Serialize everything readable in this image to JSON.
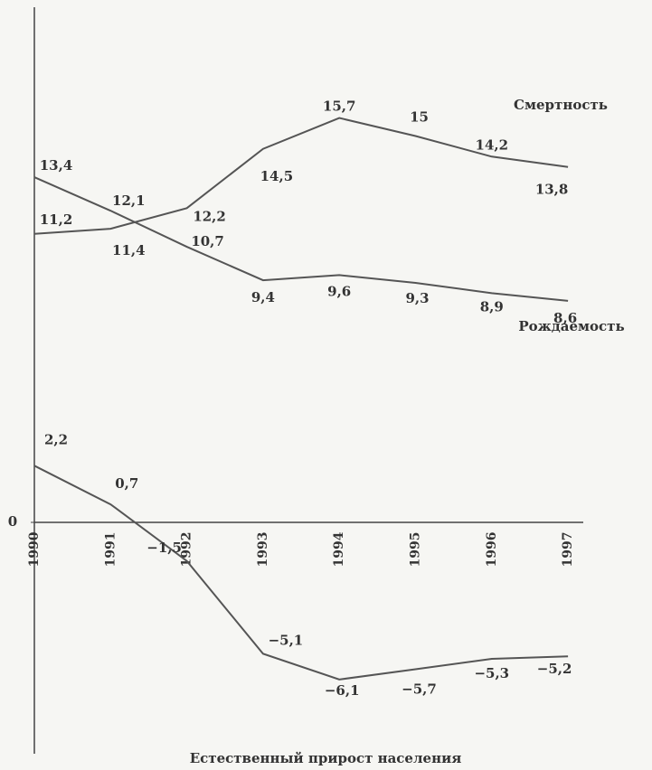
{
  "chart_data": {
    "type": "line",
    "categories": [
      "1990",
      "1991",
      "1992",
      "1993",
      "1994",
      "1995",
      "1996",
      "1997"
    ],
    "series": [
      {
        "name": "Смертность",
        "color": "#555555",
        "values": [
          11.2,
          11.4,
          12.2,
          14.5,
          15.7,
          15,
          14.2,
          13.8
        ],
        "value_labels": [
          "11,2",
          "11,4",
          "12,2",
          "14,5",
          "15,7",
          "15",
          "14,2",
          "13,8"
        ]
      },
      {
        "name": "Рождаемость",
        "color": "#555555",
        "values": [
          13.4,
          12.1,
          10.7,
          9.4,
          9.6,
          9.3,
          8.9,
          8.6
        ],
        "value_labels": [
          "13,4",
          "12,1",
          "10,7",
          "9,4",
          "9,6",
          "9,3",
          "8,9",
          "8,6"
        ]
      },
      {
        "name": "Естественный прирост населения",
        "color": "#555555",
        "values": [
          2.2,
          0.7,
          -1.5,
          -5.1,
          -6.1,
          -5.7,
          -5.3,
          -5.2
        ],
        "value_labels": [
          "2,2",
          "0,7",
          "−1,5",
          "−5,1",
          "−6,1",
          "−5,7",
          "−5,3",
          "−5,2"
        ]
      }
    ],
    "ylim": [
      -9,
      20
    ],
    "yticks": [
      0
    ],
    "grid": false
  }
}
